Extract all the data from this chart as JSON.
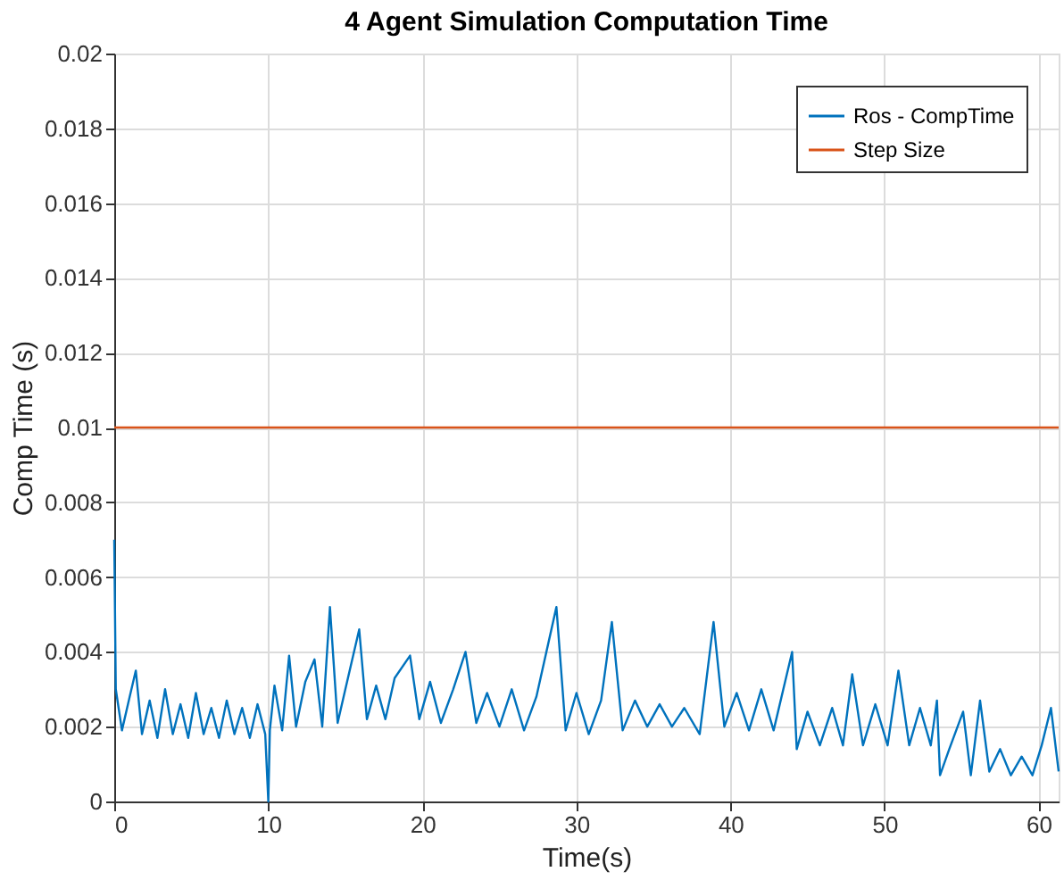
{
  "chart_data": {
    "type": "line",
    "title": "4 Agent Simulation Computation Time",
    "xlabel": "Time(s)",
    "ylabel": "Comp Time (s)",
    "xlim": [
      0,
      61.3
    ],
    "xticks": [
      0,
      10,
      20,
      30,
      40,
      50,
      60
    ],
    "ylim": [
      0,
      0.02
    ],
    "yticks": [
      0,
      0.002,
      0.004,
      0.006,
      0.008,
      0.01,
      0.012,
      0.014,
      0.016,
      0.018,
      0.02
    ],
    "grid": true,
    "legend": "top right",
    "marker": "none",
    "line_style": "solid",
    "series": [
      {
        "name": "Ros - CompTime",
        "color": "#0072bd",
        "x": [
          0,
          0.1,
          0.5,
          1.0,
          1.4,
          1.8,
          2.3,
          2.8,
          3.3,
          3.8,
          4.3,
          4.8,
          5.3,
          5.8,
          6.3,
          6.8,
          7.3,
          7.8,
          8.3,
          8.8,
          9.3,
          9.8,
          10.0,
          10.1,
          10.4,
          10.9,
          11.35,
          11.8,
          12.4,
          13.0,
          13.5,
          14.0,
          14.5,
          15.0,
          15.9,
          16.4,
          17.0,
          17.6,
          18.2,
          19.2,
          19.8,
          20.5,
          21.2,
          22.0,
          22.8,
          23.5,
          24.2,
          25.0,
          25.8,
          26.6,
          27.4,
          28.7,
          29.3,
          30.0,
          30.8,
          31.6,
          32.3,
          33.0,
          33.8,
          34.6,
          35.4,
          36.2,
          37.0,
          38.0,
          38.9,
          39.6,
          40.4,
          41.2,
          42.0,
          42.8,
          43.6,
          44.0,
          44.3,
          45.0,
          45.8,
          46.6,
          47.3,
          47.9,
          48.6,
          49.4,
          50.2,
          50.9,
          51.6,
          52.3,
          53.0,
          53.4,
          53.6,
          54.2,
          55.1,
          55.6,
          56.2,
          56.8,
          57.5,
          58.2,
          58.9,
          59.6,
          60.2,
          60.8,
          61.3
        ],
        "values": [
          0.007,
          0.003,
          0.0019,
          0.0028,
          0.0035,
          0.0018,
          0.0027,
          0.0017,
          0.003,
          0.0018,
          0.0026,
          0.0017,
          0.0029,
          0.0018,
          0.0025,
          0.0017,
          0.0027,
          0.0018,
          0.0025,
          0.0017,
          0.0026,
          0.0018,
          0.0,
          0.0019,
          0.0031,
          0.0019,
          0.0039,
          0.002,
          0.0032,
          0.0038,
          0.002,
          0.0052,
          0.0021,
          0.003,
          0.0046,
          0.0022,
          0.0031,
          0.0022,
          0.0033,
          0.0039,
          0.0022,
          0.0032,
          0.0021,
          0.003,
          0.004,
          0.0021,
          0.0029,
          0.002,
          0.003,
          0.0019,
          0.0028,
          0.0052,
          0.0019,
          0.0029,
          0.0018,
          0.0027,
          0.0048,
          0.0019,
          0.0027,
          0.002,
          0.0026,
          0.002,
          0.0025,
          0.0018,
          0.0048,
          0.002,
          0.0029,
          0.0019,
          0.003,
          0.0019,
          0.0033,
          0.004,
          0.0014,
          0.0024,
          0.0015,
          0.0025,
          0.0015,
          0.0034,
          0.0015,
          0.0026,
          0.0015,
          0.0035,
          0.0015,
          0.0025,
          0.0015,
          0.0027,
          0.0007,
          0.0014,
          0.0024,
          0.0007,
          0.0027,
          0.0008,
          0.0014,
          0.0007,
          0.0012,
          0.0007,
          0.0015,
          0.0025,
          0.0008
        ]
      },
      {
        "name": "Step Size",
        "color": "#d95319",
        "x": [
          0,
          61.3
        ],
        "values": [
          0.01,
          0.01
        ]
      }
    ]
  }
}
